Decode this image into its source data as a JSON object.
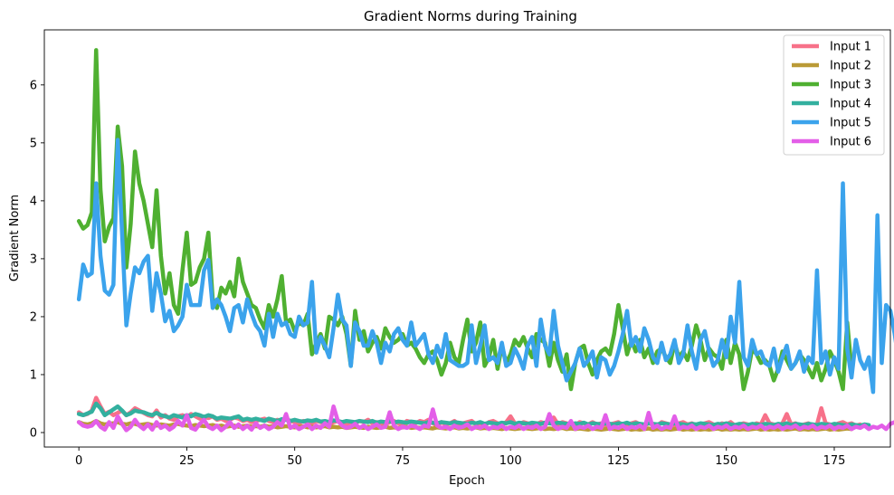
{
  "chart_data": {
    "type": "line",
    "title": "Gradient Norms during Training",
    "xlabel": "Epoch",
    "ylabel": "Gradient Norm",
    "xlim": [
      -8,
      188
    ],
    "ylim": [
      -0.25,
      6.95
    ],
    "xticks": [
      0,
      25,
      50,
      75,
      100,
      125,
      150,
      175
    ],
    "yticks": [
      0,
      1,
      2,
      3,
      4,
      5,
      6
    ],
    "grid": false,
    "legend_position": "top-right",
    "series": [
      {
        "name": "Input 1",
        "color": "#f77189",
        "values": [
          0.35,
          0.3,
          0.32,
          0.38,
          0.6,
          0.45,
          0.32,
          0.36,
          0.3,
          0.34,
          0.38,
          0.3,
          0.35,
          0.42,
          0.38,
          0.34,
          0.3,
          0.28,
          0.38,
          0.26,
          0.3,
          0.24,
          0.22,
          0.28,
          0.3,
          0.26,
          0.32,
          0.28,
          0.24,
          0.27,
          0.25,
          0.28,
          0.22,
          0.24,
          0.2,
          0.22,
          0.26,
          0.24,
          0.2,
          0.22,
          0.18,
          0.2,
          0.22,
          0.24,
          0.2,
          0.18,
          0.22,
          0.2,
          0.24,
          0.2,
          0.18,
          0.16,
          0.2,
          0.18,
          0.16,
          0.2,
          0.18,
          0.16,
          0.14,
          0.18,
          0.2,
          0.16,
          0.14,
          0.18,
          0.16,
          0.2,
          0.18,
          0.22,
          0.16,
          0.18,
          0.16,
          0.14,
          0.18,
          0.2,
          0.16,
          0.14,
          0.2,
          0.18,
          0.16,
          0.2,
          0.18,
          0.22,
          0.16,
          0.12,
          0.18,
          0.14,
          0.16,
          0.2,
          0.14,
          0.16,
          0.18,
          0.2,
          0.14,
          0.16,
          0.12,
          0.18,
          0.2,
          0.16,
          0.14,
          0.18,
          0.28,
          0.16,
          0.14,
          0.18,
          0.16,
          0.12,
          0.14,
          0.18,
          0.16,
          0.2,
          0.26,
          0.14,
          0.18,
          0.16,
          0.14,
          0.12,
          0.18,
          0.16,
          0.14,
          0.18,
          0.14,
          0.16,
          0.12,
          0.14,
          0.16,
          0.18,
          0.12,
          0.14,
          0.16,
          0.18,
          0.14,
          0.12,
          0.16,
          0.14,
          0.12,
          0.18,
          0.16,
          0.14,
          0.12,
          0.16,
          0.18,
          0.14,
          0.16,
          0.12,
          0.14,
          0.16,
          0.18,
          0.14,
          0.12,
          0.16,
          0.14,
          0.18,
          0.12,
          0.14,
          0.16,
          0.14,
          0.12,
          0.16,
          0.14,
          0.3,
          0.16,
          0.14,
          0.12,
          0.16,
          0.32,
          0.14,
          0.16,
          0.12,
          0.14,
          0.16,
          0.12,
          0.14,
          0.42,
          0.16,
          0.14,
          0.12,
          0.16,
          0.18,
          0.14,
          0.16,
          0.12,
          0.14
        ]
      },
      {
        "name": "Input 2",
        "color": "#ba9a36",
        "values": [
          0.18,
          0.15,
          0.14,
          0.16,
          0.2,
          0.16,
          0.14,
          0.15,
          0.16,
          0.18,
          0.15,
          0.14,
          0.16,
          0.15,
          0.13,
          0.14,
          0.15,
          0.13,
          0.12,
          0.14,
          0.13,
          0.12,
          0.14,
          0.15,
          0.13,
          0.12,
          0.11,
          0.13,
          0.12,
          0.11,
          0.12,
          0.13,
          0.11,
          0.12,
          0.1,
          0.11,
          0.12,
          0.1,
          0.11,
          0.12,
          0.1,
          0.11,
          0.1,
          0.12,
          0.1,
          0.11,
          0.09,
          0.1,
          0.11,
          0.1,
          0.09,
          0.1,
          0.11,
          0.09,
          0.1,
          0.09,
          0.1,
          0.11,
          0.09,
          0.1,
          0.09,
          0.1,
          0.08,
          0.09,
          0.1,
          0.09,
          0.08,
          0.1,
          0.09,
          0.08,
          0.09,
          0.1,
          0.08,
          0.09,
          0.08,
          0.09,
          0.1,
          0.08,
          0.09,
          0.08,
          0.09,
          0.08,
          0.07,
          0.09,
          0.08,
          0.07,
          0.08,
          0.09,
          0.07,
          0.08,
          0.07,
          0.08,
          0.09,
          0.07,
          0.08,
          0.07,
          0.08,
          0.07,
          0.06,
          0.08,
          0.07,
          0.06,
          0.07,
          0.08,
          0.07,
          0.06,
          0.07,
          0.08,
          0.06,
          0.07,
          0.06,
          0.07,
          0.08,
          0.06,
          0.07,
          0.06,
          0.07,
          0.06,
          0.05,
          0.07,
          0.06,
          0.05,
          0.06,
          0.07,
          0.06,
          0.05,
          0.06,
          0.07,
          0.05,
          0.06,
          0.05,
          0.06,
          0.07,
          0.05,
          0.06,
          0.05,
          0.06,
          0.05,
          0.06,
          0.07,
          0.05,
          0.06,
          0.05,
          0.06,
          0.05,
          0.06,
          0.05,
          0.06,
          0.07,
          0.05,
          0.06,
          0.05,
          0.06,
          0.05,
          0.06,
          0.05,
          0.06,
          0.07,
          0.05,
          0.06,
          0.05,
          0.06,
          0.05,
          0.06,
          0.05,
          0.06,
          0.07,
          0.05,
          0.06,
          0.05,
          0.06,
          0.05,
          0.06,
          0.07,
          0.05,
          0.06,
          0.05,
          0.06,
          0.07,
          0.06
        ]
      },
      {
        "name": "Input 3",
        "color": "#4fb031",
        "values": [
          3.65,
          3.52,
          3.58,
          3.8,
          6.6,
          4.2,
          3.3,
          3.55,
          3.7,
          5.28,
          4.6,
          2.85,
          3.6,
          4.85,
          4.3,
          4.0,
          3.6,
          3.2,
          4.18,
          3.05,
          2.4,
          2.75,
          2.2,
          2.05,
          2.8,
          3.45,
          2.55,
          2.6,
          2.85,
          3.0,
          3.45,
          2.3,
          2.15,
          2.5,
          2.4,
          2.6,
          2.35,
          3.0,
          2.6,
          2.4,
          2.2,
          2.15,
          1.95,
          1.8,
          2.2,
          2.0,
          2.3,
          2.7,
          1.9,
          1.95,
          1.75,
          1.9,
          1.85,
          2.05,
          1.35,
          1.55,
          1.7,
          1.45,
          2.0,
          1.95,
          1.85,
          2.0,
          1.7,
          1.15,
          2.1,
          1.6,
          1.75,
          1.4,
          1.55,
          1.65,
          1.45,
          1.8,
          1.65,
          1.55,
          1.6,
          1.7,
          1.5,
          1.55,
          1.45,
          1.3,
          1.2,
          1.35,
          1.4,
          1.25,
          1.0,
          1.2,
          1.55,
          1.3,
          1.2,
          1.6,
          1.95,
          1.4,
          1.55,
          1.9,
          1.15,
          1.3,
          1.6,
          1.1,
          1.5,
          1.2,
          1.35,
          1.6,
          1.5,
          1.65,
          1.45,
          1.3,
          1.7,
          1.6,
          1.55,
          1.15,
          1.55,
          1.25,
          1.05,
          1.35,
          0.75,
          1.2,
          1.45,
          1.5,
          1.2,
          1.0,
          1.25,
          1.4,
          1.45,
          1.35,
          1.7,
          2.2,
          1.8,
          1.35,
          1.6,
          1.4,
          1.6,
          1.3,
          1.45,
          1.2,
          1.4,
          1.45,
          1.3,
          1.2,
          1.55,
          1.3,
          1.4,
          1.25,
          1.5,
          1.85,
          1.6,
          1.25,
          1.45,
          1.35,
          1.3,
          1.1,
          1.6,
          1.2,
          1.55,
          1.35,
          0.75,
          1.05,
          1.45,
          1.35,
          1.2,
          1.25,
          1.15,
          0.9,
          1.1,
          1.4,
          1.25,
          1.1,
          1.2,
          1.35,
          1.25,
          1.1,
          0.95,
          1.2,
          0.9,
          1.1,
          1.4,
          1.25,
          1.05,
          0.75,
          1.9,
          1.1
        ]
      },
      {
        "name": "Input 4",
        "color": "#33b09f",
        "values": [
          0.32,
          0.3,
          0.33,
          0.36,
          0.5,
          0.42,
          0.3,
          0.35,
          0.4,
          0.45,
          0.38,
          0.3,
          0.33,
          0.38,
          0.36,
          0.35,
          0.32,
          0.3,
          0.34,
          0.3,
          0.28,
          0.26,
          0.3,
          0.28,
          0.26,
          0.3,
          0.28,
          0.32,
          0.3,
          0.27,
          0.3,
          0.28,
          0.24,
          0.26,
          0.25,
          0.24,
          0.26,
          0.28,
          0.22,
          0.24,
          0.22,
          0.24,
          0.22,
          0.2,
          0.24,
          0.22,
          0.2,
          0.23,
          0.22,
          0.2,
          0.22,
          0.2,
          0.19,
          0.21,
          0.2,
          0.22,
          0.19,
          0.2,
          0.18,
          0.21,
          0.2,
          0.18,
          0.2,
          0.19,
          0.18,
          0.2,
          0.19,
          0.18,
          0.2,
          0.17,
          0.19,
          0.18,
          0.2,
          0.17,
          0.19,
          0.18,
          0.17,
          0.19,
          0.18,
          0.17,
          0.16,
          0.18,
          0.17,
          0.16,
          0.18,
          0.17,
          0.16,
          0.18,
          0.17,
          0.16,
          0.15,
          0.17,
          0.16,
          0.18,
          0.15,
          0.17,
          0.16,
          0.15,
          0.17,
          0.16,
          0.18,
          0.15,
          0.17,
          0.16,
          0.15,
          0.17,
          0.16,
          0.15,
          0.17,
          0.16,
          0.15,
          0.17,
          0.16,
          0.15,
          0.14,
          0.16,
          0.15,
          0.17,
          0.14,
          0.16,
          0.15,
          0.14,
          0.16,
          0.15,
          0.14,
          0.16,
          0.15,
          0.17,
          0.14,
          0.16,
          0.15,
          0.14,
          0.16,
          0.15,
          0.14,
          0.16,
          0.15,
          0.14,
          0.16,
          0.15,
          0.14,
          0.13,
          0.15,
          0.14,
          0.16,
          0.15,
          0.14,
          0.13,
          0.15,
          0.14,
          0.16,
          0.14,
          0.13,
          0.15,
          0.14,
          0.13,
          0.15,
          0.14,
          0.13,
          0.15,
          0.14,
          0.13,
          0.15,
          0.14,
          0.16,
          0.13,
          0.15,
          0.14,
          0.13,
          0.15,
          0.14,
          0.13,
          0.15,
          0.14,
          0.13,
          0.15,
          0.14,
          0.13,
          0.12,
          0.14,
          0.13,
          0.12,
          0.14,
          0.13
        ]
      },
      {
        "name": "Input 5",
        "color": "#3ba3ec",
        "values": [
          2.3,
          2.9,
          2.7,
          2.75,
          4.3,
          3.05,
          2.45,
          2.38,
          2.55,
          5.05,
          3.45,
          1.85,
          2.4,
          2.85,
          2.75,
          2.95,
          3.05,
          2.1,
          2.75,
          2.4,
          1.92,
          2.1,
          1.75,
          1.85,
          2.0,
          2.55,
          2.2,
          2.2,
          2.2,
          2.8,
          2.98,
          2.15,
          2.3,
          2.2,
          2.0,
          1.75,
          2.15,
          2.2,
          1.9,
          2.3,
          2.05,
          1.85,
          1.75,
          1.5,
          2.05,
          1.65,
          2.05,
          1.85,
          1.9,
          1.7,
          1.65,
          2.0,
          1.85,
          1.9,
          2.6,
          1.38,
          1.65,
          1.5,
          1.3,
          1.8,
          2.38,
          1.95,
          1.85,
          1.15,
          1.9,
          1.75,
          1.5,
          1.5,
          1.75,
          1.55,
          1.2,
          1.55,
          1.4,
          1.7,
          1.8,
          1.6,
          1.5,
          1.9,
          1.5,
          1.6,
          1.7,
          1.35,
          1.2,
          1.5,
          1.3,
          1.7,
          1.25,
          1.2,
          1.15,
          1.15,
          1.2,
          1.85,
          1.2,
          1.5,
          1.85,
          1.25,
          1.3,
          1.2,
          1.55,
          1.15,
          1.2,
          1.45,
          1.3,
          1.1,
          1.5,
          1.65,
          1.15,
          1.95,
          1.5,
          1.35,
          2.1,
          1.5,
          1.2,
          0.9,
          1.05,
          1.2,
          1.45,
          1.15,
          1.25,
          1.4,
          0.95,
          1.3,
          1.25,
          1.0,
          1.15,
          1.4,
          1.7,
          2.1,
          1.5,
          1.65,
          1.4,
          1.8,
          1.6,
          1.3,
          1.2,
          1.55,
          1.25,
          1.35,
          1.6,
          1.2,
          1.35,
          1.85,
          1.4,
          1.1,
          1.6,
          1.75,
          1.4,
          1.15,
          1.25,
          1.6,
          1.3,
          2.0,
          1.55,
          2.6,
          1.3,
          1.15,
          1.6,
          1.35,
          1.4,
          1.2,
          1.15,
          1.45,
          1.05,
          1.3,
          1.5,
          1.1,
          1.2,
          1.4,
          1.05,
          1.3,
          1.2,
          2.8,
          1.2,
          1.4,
          1.0,
          1.3,
          1.1,
          4.3,
          1.45,
          0.95,
          1.6,
          1.25,
          1.1,
          1.3,
          0.7,
          3.75,
          1.2,
          2.2,
          2.1,
          1.7,
          1.2,
          1.3
        ]
      },
      {
        "name": "Input 6",
        "color": "#e35ee8",
        "values": [
          0.18,
          0.12,
          0.1,
          0.12,
          0.2,
          0.1,
          0.05,
          0.18,
          0.08,
          0.28,
          0.15,
          0.04,
          0.1,
          0.22,
          0.12,
          0.06,
          0.14,
          0.05,
          0.18,
          0.08,
          0.12,
          0.05,
          0.1,
          0.2,
          0.12,
          0.3,
          0.08,
          0.05,
          0.15,
          0.22,
          0.1,
          0.06,
          0.12,
          0.04,
          0.1,
          0.18,
          0.08,
          0.14,
          0.06,
          0.12,
          0.05,
          0.16,
          0.08,
          0.12,
          0.06,
          0.1,
          0.18,
          0.12,
          0.32,
          0.08,
          0.12,
          0.06,
          0.1,
          0.14,
          0.06,
          0.12,
          0.08,
          0.16,
          0.1,
          0.45,
          0.2,
          0.12,
          0.08,
          0.1,
          0.15,
          0.08,
          0.12,
          0.06,
          0.1,
          0.14,
          0.08,
          0.1,
          0.35,
          0.12,
          0.06,
          0.1,
          0.08,
          0.12,
          0.1,
          0.06,
          0.12,
          0.1,
          0.4,
          0.12,
          0.08,
          0.1,
          0.06,
          0.12,
          0.08,
          0.1,
          0.14,
          0.06,
          0.1,
          0.08,
          0.12,
          0.06,
          0.1,
          0.08,
          0.12,
          0.06,
          0.1,
          0.08,
          0.12,
          0.06,
          0.1,
          0.08,
          0.12,
          0.06,
          0.1,
          0.32,
          0.12,
          0.06,
          0.1,
          0.08,
          0.2,
          0.06,
          0.1,
          0.08,
          0.12,
          0.06,
          0.1,
          0.08,
          0.3,
          0.06,
          0.1,
          0.08,
          0.12,
          0.06,
          0.1,
          0.08,
          0.12,
          0.06,
          0.34,
          0.08,
          0.12,
          0.06,
          0.1,
          0.08,
          0.28,
          0.06,
          0.1,
          0.08,
          0.12,
          0.06,
          0.1,
          0.08,
          0.12,
          0.06,
          0.1,
          0.08,
          0.12,
          0.06,
          0.1,
          0.08,
          0.12,
          0.06,
          0.1,
          0.08,
          0.12,
          0.06,
          0.1,
          0.08,
          0.12,
          0.06,
          0.1,
          0.08,
          0.12,
          0.06,
          0.1,
          0.08,
          0.12,
          0.06,
          0.1,
          0.08,
          0.12,
          0.06,
          0.1,
          0.08,
          0.12,
          0.06,
          0.1,
          0.08,
          0.12,
          0.06,
          0.1,
          0.08,
          0.12,
          0.06,
          0.15,
          0.18
        ]
      }
    ]
  }
}
